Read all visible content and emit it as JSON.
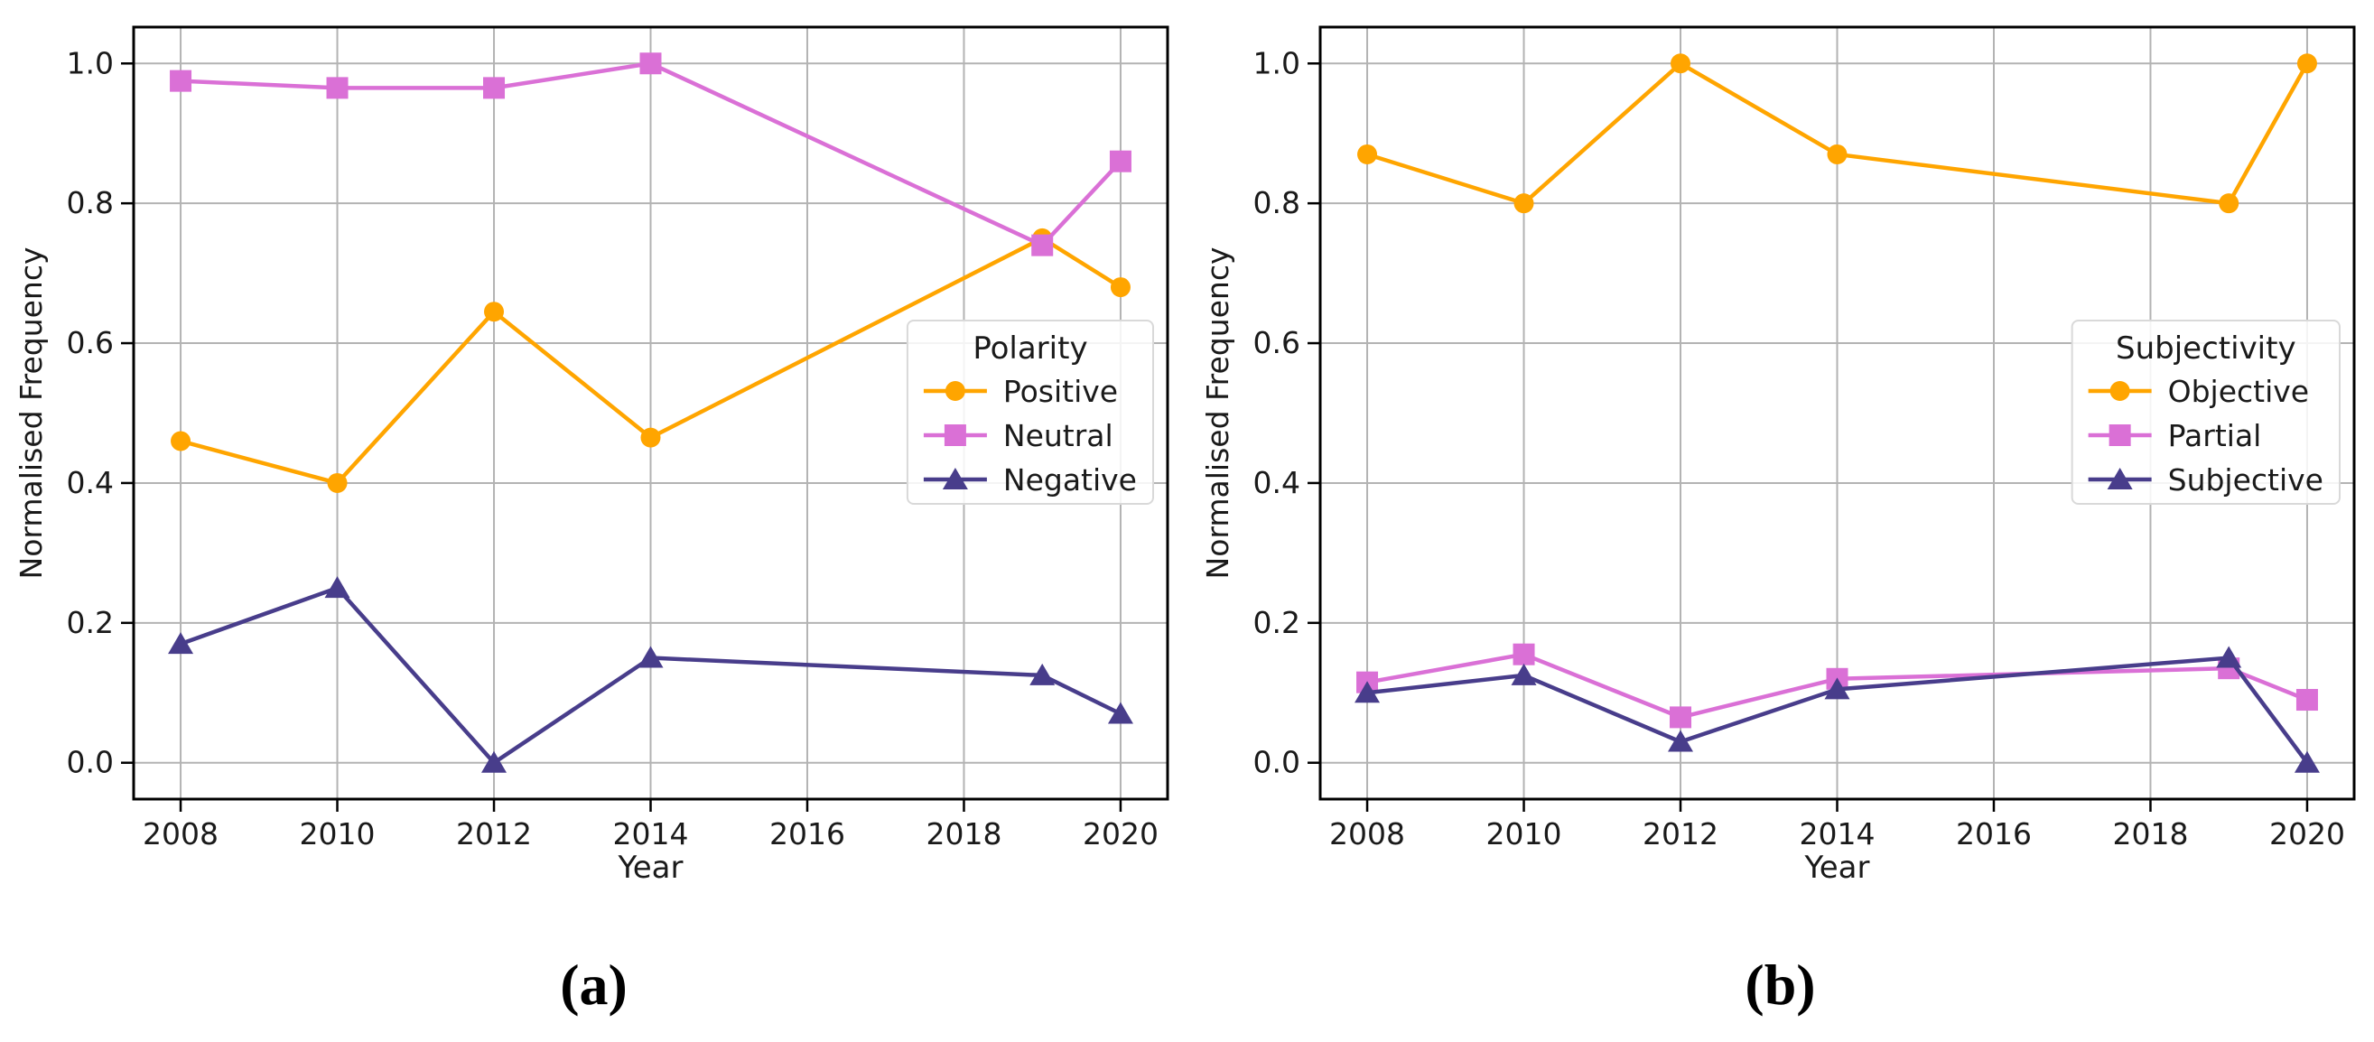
{
  "figure": {
    "panels": [
      {
        "caption": "(a)"
      },
      {
        "caption": "(b)"
      }
    ]
  },
  "chart_data": [
    {
      "type": "line",
      "title": "",
      "xlabel": "Year",
      "ylabel": "Normalised Frequency",
      "legend_title": "Polarity",
      "legend_position": "right-center",
      "grid": true,
      "grid_color": "#b3b3b3",
      "x": [
        2008,
        2010,
        2012,
        2014,
        2019,
        2020
      ],
      "xticks": [
        2008,
        2010,
        2012,
        2014,
        2016,
        2018,
        2020
      ],
      "xtick_labels": [
        "2008",
        "2010",
        "2012",
        "2014",
        "2016",
        "2018",
        "2020"
      ],
      "yticks": [
        0.0,
        0.2,
        0.4,
        0.6,
        0.8,
        1.0
      ],
      "ytick_labels": [
        "0.0",
        "0.2",
        "0.4",
        "0.6",
        "0.8",
        "1.0"
      ],
      "xlim": [
        2007.4,
        2020.6
      ],
      "ylim": [
        -0.052,
        1.052
      ],
      "series": [
        {
          "name": "Positive",
          "marker": "circle",
          "color": "#FFA500",
          "values": [
            0.46,
            0.4,
            0.645,
            0.465,
            0.75,
            0.68
          ]
        },
        {
          "name": "Neutral",
          "marker": "square",
          "color": "#DA70D6",
          "values": [
            0.975,
            0.965,
            0.965,
            1.0,
            0.74,
            0.86
          ]
        },
        {
          "name": "Negative",
          "marker": "triangle",
          "color": "#483D8B",
          "values": [
            0.17,
            0.25,
            0.0,
            0.15,
            0.125,
            0.07
          ]
        }
      ]
    },
    {
      "type": "line",
      "title": "",
      "xlabel": "Year",
      "ylabel": "Normalised Frequency",
      "legend_title": "Subjectivity",
      "legend_position": "right-center",
      "grid": true,
      "grid_color": "#b3b3b3",
      "x": [
        2008,
        2010,
        2012,
        2014,
        2019,
        2020
      ],
      "xticks": [
        2008,
        2010,
        2012,
        2014,
        2016,
        2018,
        2020
      ],
      "xtick_labels": [
        "2008",
        "2010",
        "2012",
        "2014",
        "2016",
        "2018",
        "2020"
      ],
      "yticks": [
        0.0,
        0.2,
        0.4,
        0.6,
        0.8,
        1.0
      ],
      "ytick_labels": [
        "0.0",
        "0.2",
        "0.4",
        "0.6",
        "0.8",
        "1.0"
      ],
      "xlim": [
        2007.4,
        2020.6
      ],
      "ylim": [
        -0.052,
        1.052
      ],
      "series": [
        {
          "name": "Objective",
          "marker": "circle",
          "color": "#FFA500",
          "values": [
            0.87,
            0.8,
            1.0,
            0.87,
            0.8,
            1.0
          ]
        },
        {
          "name": "Partial",
          "marker": "square",
          "color": "#DA70D6",
          "values": [
            0.115,
            0.155,
            0.065,
            0.12,
            0.135,
            0.09
          ]
        },
        {
          "name": "Subjective",
          "marker": "triangle",
          "color": "#483D8B",
          "values": [
            0.1,
            0.125,
            0.03,
            0.105,
            0.15,
            0.0
          ]
        }
      ]
    }
  ]
}
